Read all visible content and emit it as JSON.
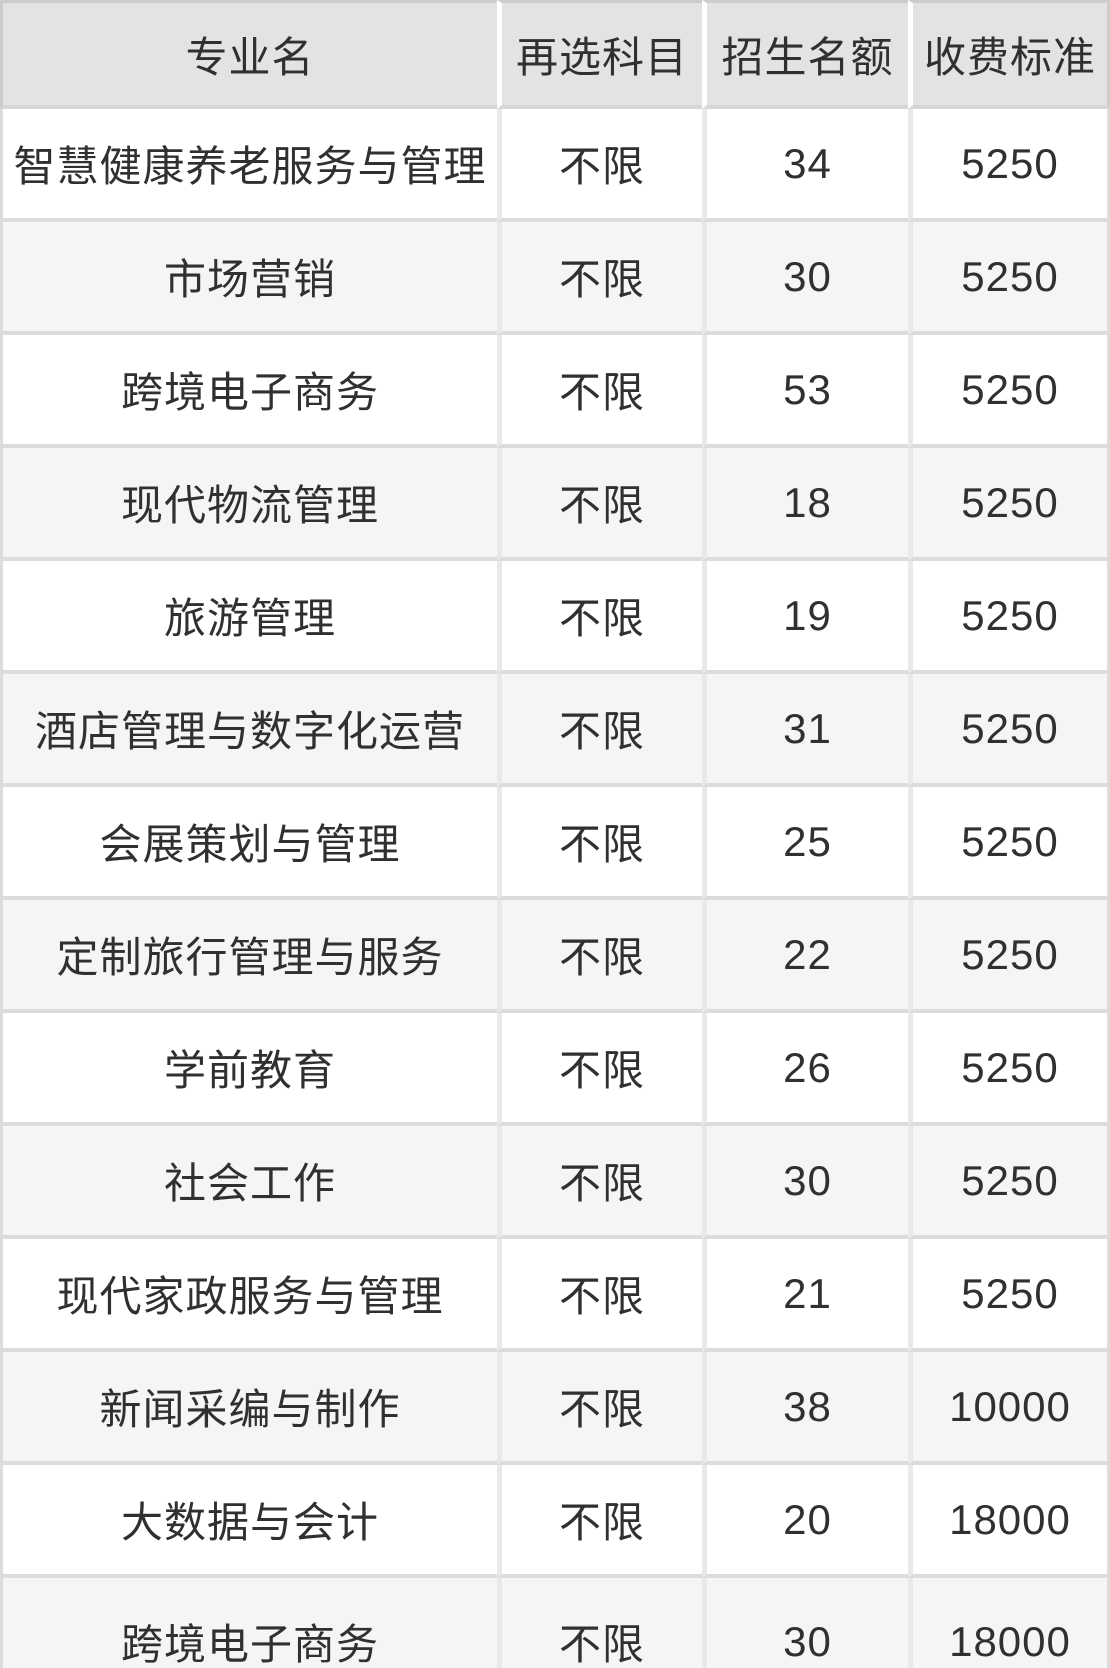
{
  "chart_data": {
    "type": "table",
    "columns": [
      "专业名",
      "再选科目",
      "招生名额",
      "收费标准"
    ],
    "rows": [
      [
        "智慧健康养老服务与管理",
        "不限",
        "34",
        "5250"
      ],
      [
        "市场营销",
        "不限",
        "30",
        "5250"
      ],
      [
        "跨境电子商务",
        "不限",
        "53",
        "5250"
      ],
      [
        "现代物流管理",
        "不限",
        "18",
        "5250"
      ],
      [
        "旅游管理",
        "不限",
        "19",
        "5250"
      ],
      [
        "酒店管理与数字化运营",
        "不限",
        "31",
        "5250"
      ],
      [
        "会展策划与管理",
        "不限",
        "25",
        "5250"
      ],
      [
        "定制旅行管理与服务",
        "不限",
        "22",
        "5250"
      ],
      [
        "学前教育",
        "不限",
        "26",
        "5250"
      ],
      [
        "社会工作",
        "不限",
        "30",
        "5250"
      ],
      [
        "现代家政服务与管理",
        "不限",
        "21",
        "5250"
      ],
      [
        "新闻采编与制作",
        "不限",
        "38",
        "10000"
      ],
      [
        "大数据与会计",
        "不限",
        "20",
        "18000"
      ],
      [
        "跨境电子商务",
        "不限",
        "30",
        "18000"
      ]
    ],
    "legend": "none",
    "grid": "on"
  },
  "colors": {
    "header_bg": "#e3e3e3",
    "row_bg": "#ffffff",
    "row_alt_bg": "#f5f5f5",
    "text": "#303030",
    "grid_line": "#dcdcdc",
    "outer_border": "#cccccc"
  }
}
